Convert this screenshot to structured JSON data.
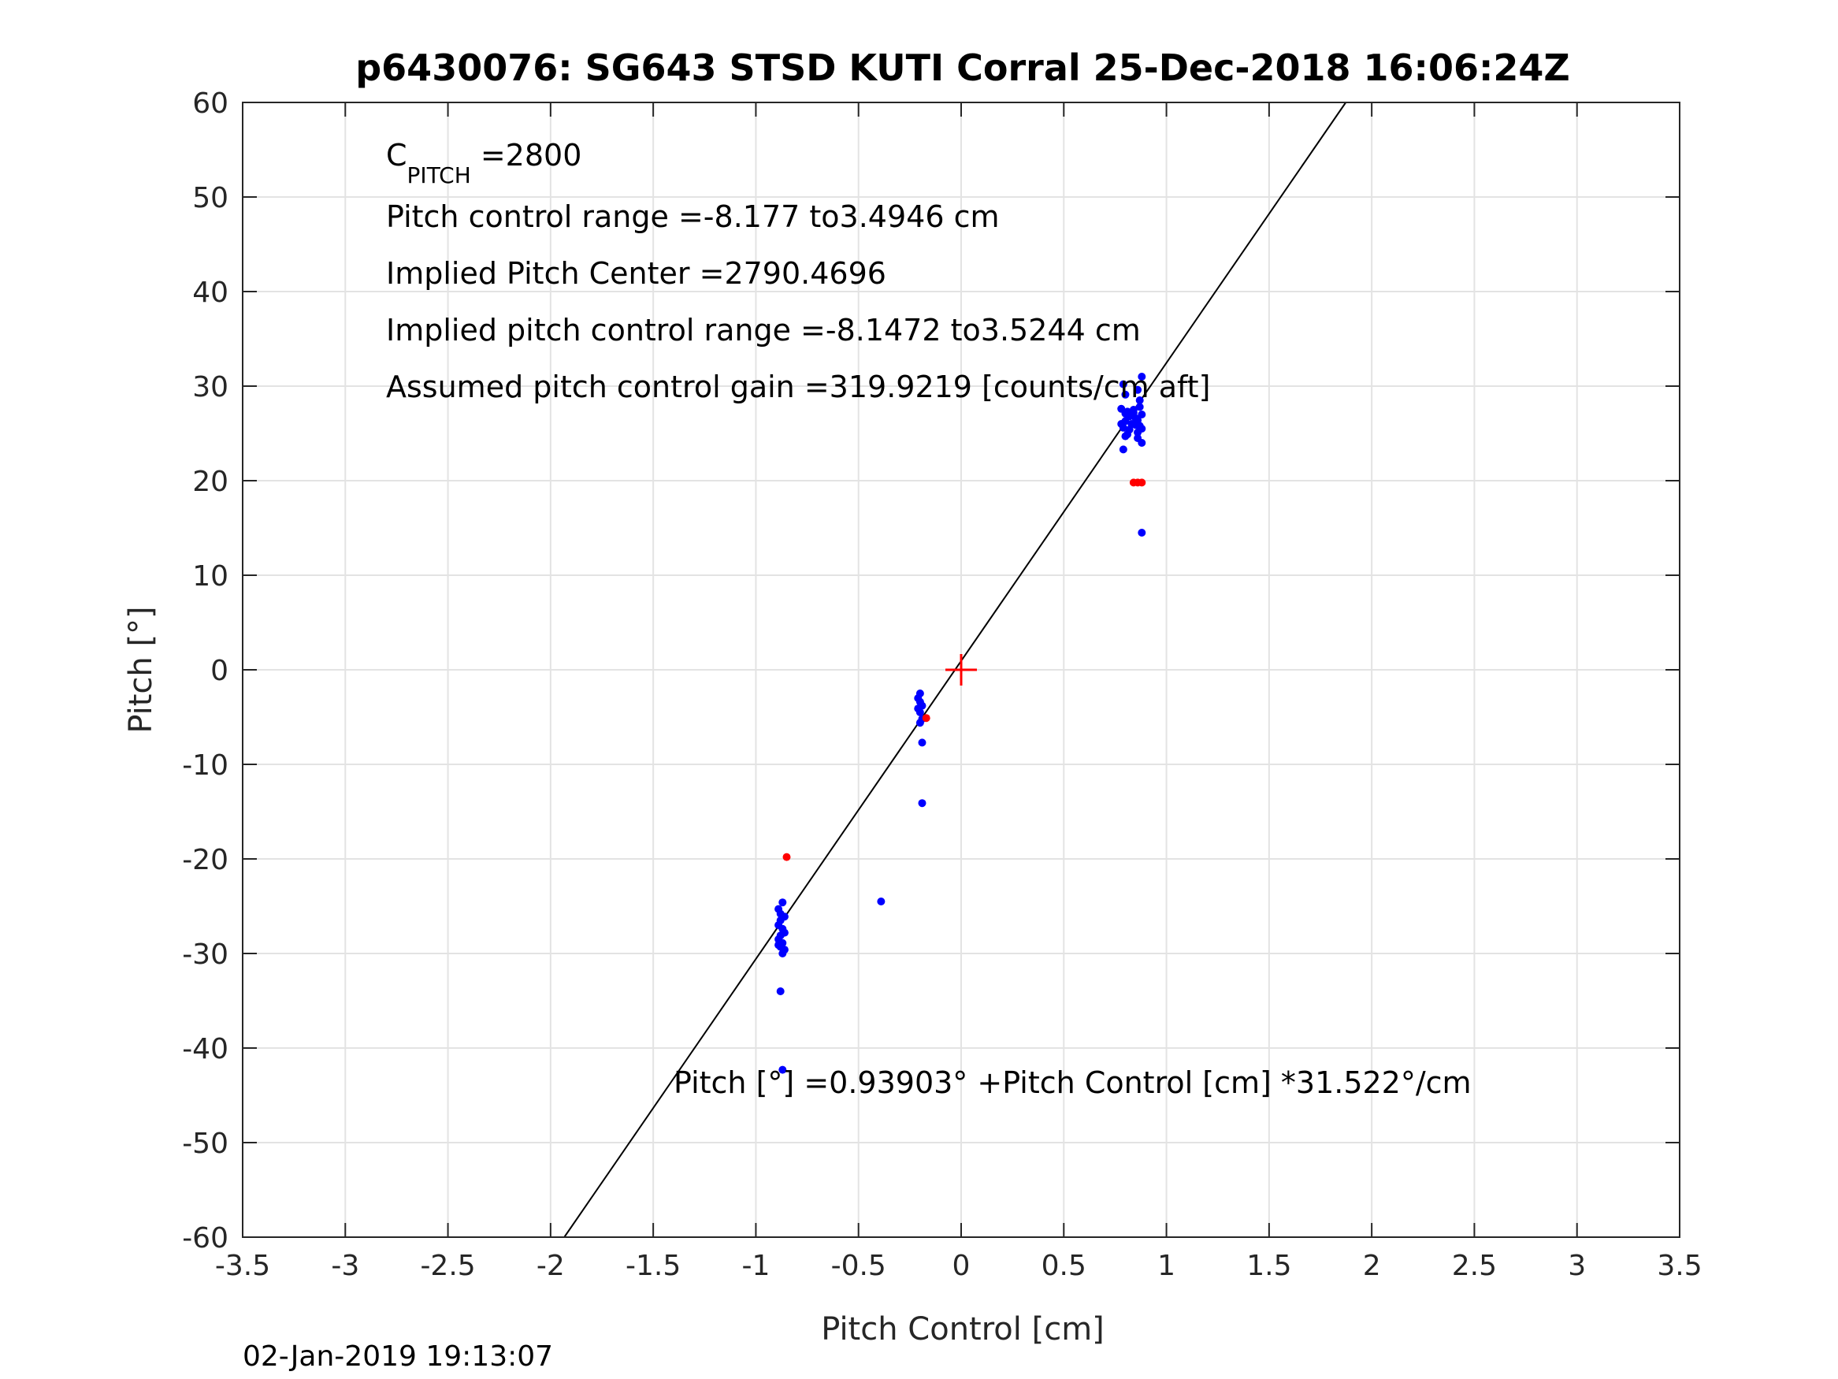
{
  "chart_data": {
    "type": "scatter",
    "title": "p6430076: SG643 STSD KUTI Corral 25-Dec-2018 16:06:24Z",
    "xlabel": "Pitch Control [cm]",
    "ylabel": "Pitch [°]",
    "xlim": [
      -3.5,
      3.5
    ],
    "ylim": [
      -60,
      60
    ],
    "xticks": [
      -3.5,
      -3,
      -2.5,
      -2,
      -1.5,
      -1,
      -0.5,
      0,
      0.5,
      1,
      1.5,
      2,
      2.5,
      3,
      3.5
    ],
    "yticks": [
      -60,
      -50,
      -40,
      -30,
      -20,
      -10,
      0,
      10,
      20,
      30,
      40,
      50,
      60
    ],
    "xtick_labels": [
      "-3.5",
      "-3",
      "-2.5",
      "-2",
      "-1.5",
      "-1",
      "-0.5",
      "0",
      "0.5",
      "1",
      "1.5",
      "2",
      "2.5",
      "3",
      "3.5"
    ],
    "ytick_labels": [
      "-60",
      "-50",
      "-40",
      "-30",
      "-20",
      "-10",
      "0",
      "10",
      "20",
      "30",
      "40",
      "50",
      "60"
    ],
    "grid": true,
    "fit_line": {
      "intercept": 0.93903,
      "slope": 31.522
    },
    "center_marker": {
      "x": 0,
      "y": 0,
      "color": "#ff0000"
    },
    "series": [
      {
        "color": "#0000ff",
        "points": [
          [
            0.79,
            30.2
          ],
          [
            0.88,
            31.0
          ],
          [
            0.8,
            29.1
          ],
          [
            0.86,
            29.6
          ],
          [
            0.87,
            28.5
          ],
          [
            0.78,
            27.6
          ],
          [
            0.8,
            27.1
          ],
          [
            0.82,
            26.8
          ],
          [
            0.84,
            27.2
          ],
          [
            0.86,
            26.4
          ],
          [
            0.88,
            27.0
          ],
          [
            0.8,
            26.3
          ],
          [
            0.83,
            26.0
          ],
          [
            0.85,
            26.6
          ],
          [
            0.87,
            25.8
          ],
          [
            0.79,
            25.6
          ],
          [
            0.82,
            25.4
          ],
          [
            0.86,
            25.1
          ],
          [
            0.88,
            25.5
          ],
          [
            0.81,
            24.9
          ],
          [
            0.84,
            27.5
          ],
          [
            0.87,
            27.8
          ],
          [
            0.78,
            26.0
          ],
          [
            0.8,
            24.7
          ],
          [
            0.86,
            24.5
          ],
          [
            0.88,
            24.0
          ],
          [
            0.79,
            23.3
          ],
          [
            0.85,
            25.9
          ],
          [
            0.83,
            26.9
          ],
          [
            0.81,
            27.3
          ],
          [
            0.88,
            14.5
          ],
          [
            -0.2,
            -2.5
          ],
          [
            -0.21,
            -3.0
          ],
          [
            -0.2,
            -3.4
          ],
          [
            -0.19,
            -3.8
          ],
          [
            -0.21,
            -4.1
          ],
          [
            -0.2,
            -4.5
          ],
          [
            -0.19,
            -5.2
          ],
          [
            -0.2,
            -5.6
          ],
          [
            -0.19,
            -7.7
          ],
          [
            -0.19,
            -14.1
          ],
          [
            -0.39,
            -24.5
          ],
          [
            -0.87,
            -24.6
          ],
          [
            -0.89,
            -25.3
          ],
          [
            -0.88,
            -25.8
          ],
          [
            -0.86,
            -26.1
          ],
          [
            -0.88,
            -26.5
          ],
          [
            -0.89,
            -27.0
          ],
          [
            -0.87,
            -27.4
          ],
          [
            -0.86,
            -27.8
          ],
          [
            -0.88,
            -28.1
          ],
          [
            -0.89,
            -28.5
          ],
          [
            -0.87,
            -28.9
          ],
          [
            -0.88,
            -29.3
          ],
          [
            -0.86,
            -29.6
          ],
          [
            -0.87,
            -30.0
          ],
          [
            -0.89,
            -29.1
          ],
          [
            -0.88,
            -34.0
          ],
          [
            -0.87,
            -42.3
          ]
        ]
      },
      {
        "color": "#ff0000",
        "points": [
          [
            0.84,
            19.8
          ],
          [
            0.86,
            19.8
          ],
          [
            0.88,
            19.8
          ],
          [
            -0.17,
            -5.1
          ],
          [
            -0.85,
            -19.8
          ]
        ]
      }
    ]
  },
  "annotations": {
    "c_pitch_main": "C",
    "c_pitch_sub": "PITCH",
    "c_pitch_value": " =2800",
    "line2": "Pitch control range =-8.177 to3.4946 cm",
    "line3": "Implied Pitch Center =2790.4696",
    "line4": "Implied pitch control range =-8.1472 to3.5244 cm",
    "line5": "Assumed pitch control gain =319.9219 [counts/cm aft]",
    "equation": "Pitch [°] =0.93903° +Pitch Control [cm] *31.522°/cm"
  },
  "footer": {
    "timestamp": "02-Jan-2019 19:13:07"
  }
}
